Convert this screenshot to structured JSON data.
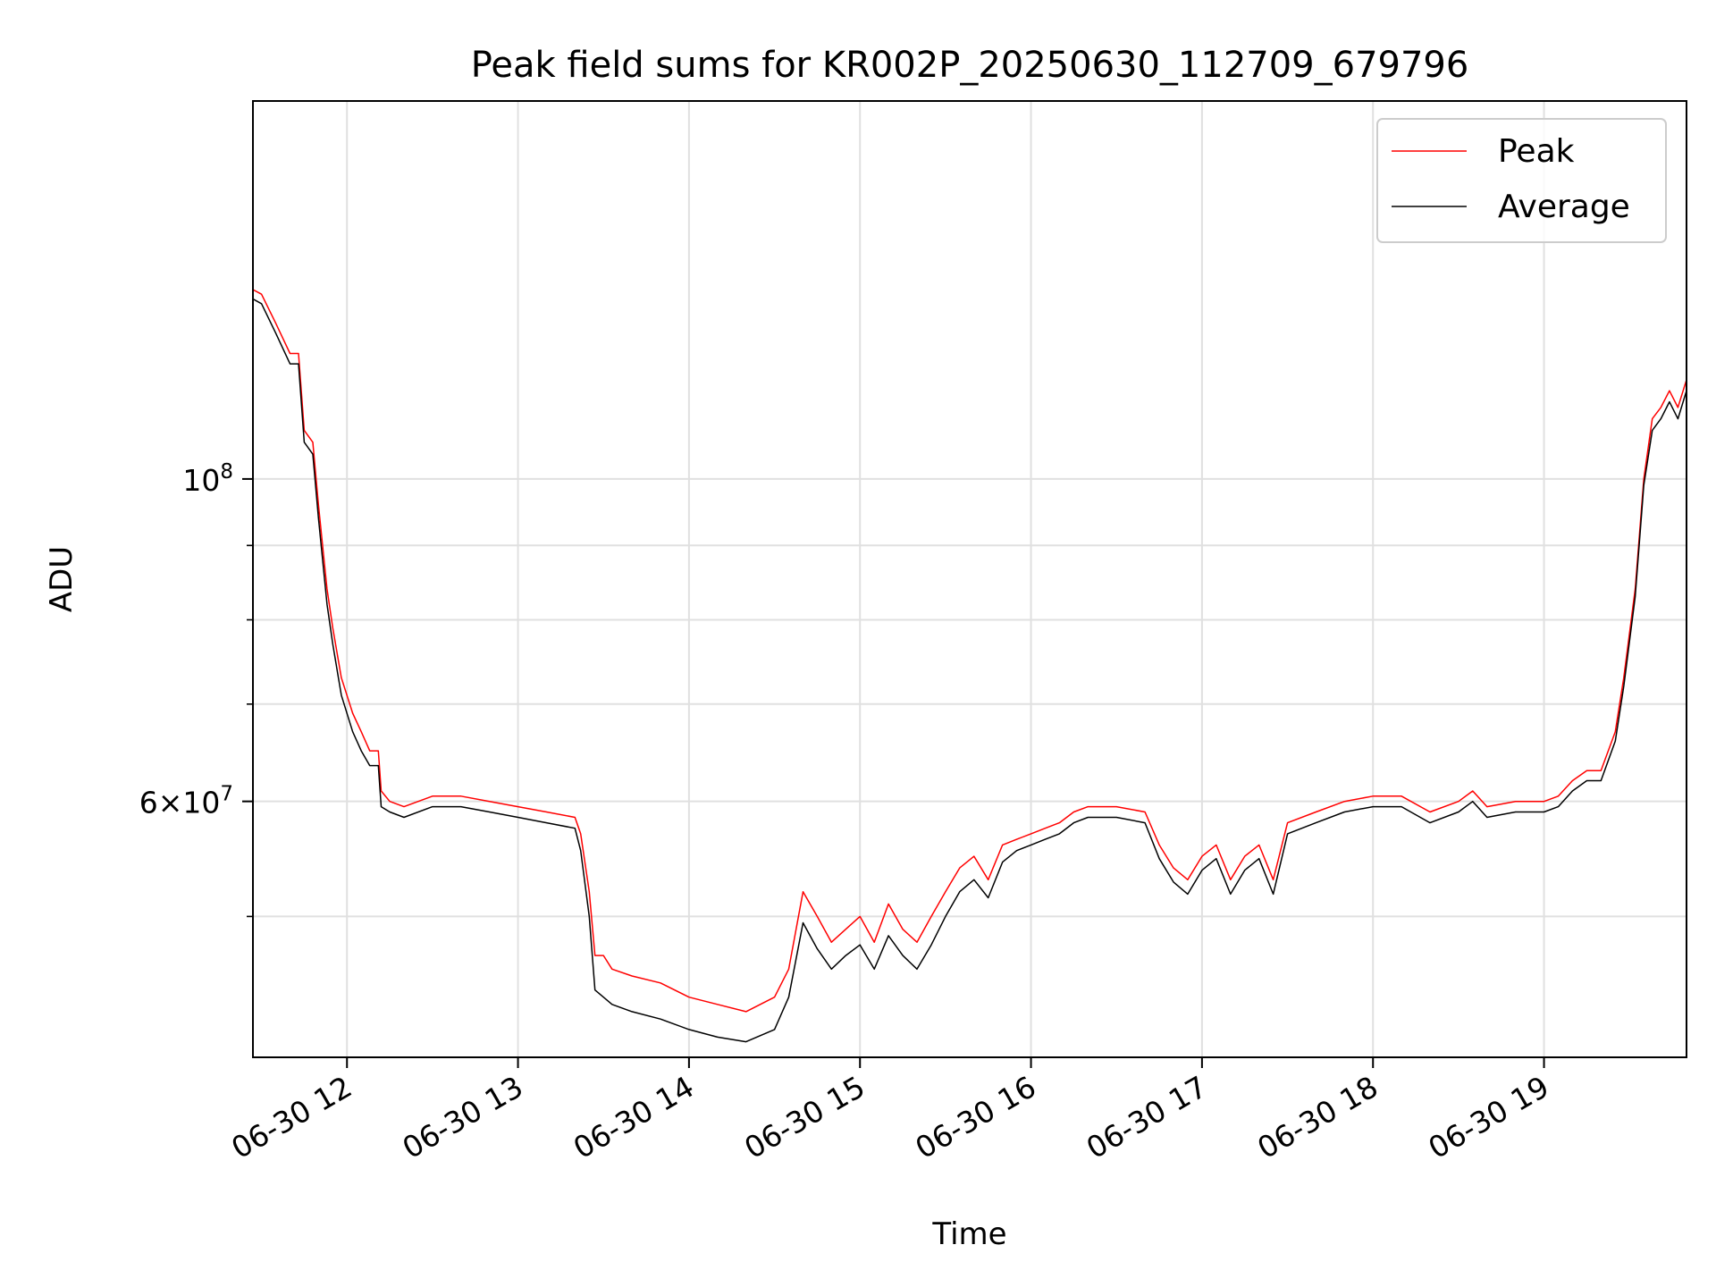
{
  "chart_data": {
    "type": "line",
    "title": "Peak field sums for KR002P_20250630_112709_679796",
    "xlabel": "Time",
    "ylabel": "ADU",
    "y_scale": "log",
    "ylim": [
      40000000,
      182000000
    ],
    "x_range": [
      "06-30 11:27",
      "06-30 19:50"
    ],
    "x_ticks": [
      "06-30 12",
      "06-30 13",
      "06-30 14",
      "06-30 15",
      "06-30 16",
      "06-30 17",
      "06-30 18",
      "06-30 19"
    ],
    "y_major_ticks": [
      {
        "value": 100000000,
        "label_base": "10",
        "label_exp": "8"
      },
      {
        "value": 60000000,
        "label_base": "6×10",
        "label_exp": "7"
      }
    ],
    "y_minor_ticks": [
      50000000,
      70000000,
      80000000,
      90000000
    ],
    "grid": true,
    "legend_position": "top-right",
    "series": [
      {
        "name": "Peak",
        "color": "#ff0000",
        "x": [
          "06-30 11:27",
          "06-30 11:30",
          "06-30 11:35",
          "06-30 11:40",
          "06-30 11:43",
          "06-30 11:45",
          "06-30 11:48",
          "06-30 11:50",
          "06-30 11:53",
          "06-30 11:55",
          "06-30 11:58",
          "06-30 12:02",
          "06-30 12:05",
          "06-30 12:08",
          "06-30 12:10",
          "06-30 12:11",
          "06-30 12:12",
          "06-30 12:15",
          "06-30 12:20",
          "06-30 12:30",
          "06-30 12:40",
          "06-30 12:50",
          "06-30 13:00",
          "06-30 13:10",
          "06-30 13:20",
          "06-30 13:22",
          "06-30 13:25",
          "06-30 13:27",
          "06-30 13:30",
          "06-30 13:33",
          "06-30 13:40",
          "06-30 13:50",
          "06-30 14:00",
          "06-30 14:10",
          "06-30 14:20",
          "06-30 14:30",
          "06-30 14:35",
          "06-30 14:40",
          "06-30 14:45",
          "06-30 14:50",
          "06-30 14:55",
          "06-30 15:00",
          "06-30 15:05",
          "06-30 15:10",
          "06-30 15:15",
          "06-30 15:20",
          "06-30 15:25",
          "06-30 15:30",
          "06-30 15:35",
          "06-30 15:40",
          "06-30 15:45",
          "06-30 15:50",
          "06-30 15:55",
          "06-30 16:00",
          "06-30 16:05",
          "06-30 16:10",
          "06-30 16:15",
          "06-30 16:20",
          "06-30 16:30",
          "06-30 16:40",
          "06-30 16:45",
          "06-30 16:50",
          "06-30 16:55",
          "06-30 17:00",
          "06-30 17:05",
          "06-30 17:10",
          "06-30 17:15",
          "06-30 17:20",
          "06-30 17:25",
          "06-30 17:30",
          "06-30 17:40",
          "06-30 17:50",
          "06-30 18:00",
          "06-30 18:10",
          "06-30 18:20",
          "06-30 18:30",
          "06-30 18:35",
          "06-30 18:40",
          "06-30 18:50",
          "06-30 19:00",
          "06-30 19:05",
          "06-30 19:10",
          "06-30 19:15",
          "06-30 19:20",
          "06-30 19:25",
          "06-30 19:28",
          "06-30 19:32",
          "06-30 19:35",
          "06-30 19:38",
          "06-30 19:41",
          "06-30 19:44",
          "06-30 19:47",
          "06-30 19:50"
        ],
        "y": [
          135000000,
          134000000,
          128000000,
          122000000,
          122000000,
          108000000,
          106000000,
          96000000,
          84000000,
          79000000,
          73000000,
          69000000,
          67000000,
          65000000,
          65000000,
          65000000,
          61000000,
          60000000,
          59500000,
          60500000,
          60500000,
          60000000,
          59500000,
          59000000,
          58500000,
          57000000,
          52000000,
          47000000,
          47000000,
          46000000,
          45500000,
          45000000,
          44000000,
          43500000,
          43000000,
          44000000,
          46000000,
          52000000,
          50000000,
          48000000,
          49000000,
          50000000,
          48000000,
          51000000,
          49000000,
          48000000,
          50000000,
          52000000,
          54000000,
          55000000,
          53000000,
          56000000,
          56500000,
          57000000,
          57500000,
          58000000,
          59000000,
          59500000,
          59500000,
          59000000,
          56000000,
          54000000,
          53000000,
          55000000,
          56000000,
          53000000,
          55000000,
          56000000,
          53000000,
          58000000,
          59000000,
          60000000,
          60500000,
          60500000,
          59000000,
          60000000,
          61000000,
          59500000,
          60000000,
          60000000,
          60500000,
          62000000,
          63000000,
          63000000,
          67000000,
          73000000,
          84000000,
          100000000,
          110000000,
          112000000,
          115000000,
          112000000,
          117000000
        ]
      },
      {
        "name": "Average",
        "color": "#000000",
        "x": [
          "06-30 11:27",
          "06-30 11:30",
          "06-30 11:35",
          "06-30 11:40",
          "06-30 11:43",
          "06-30 11:45",
          "06-30 11:48",
          "06-30 11:50",
          "06-30 11:53",
          "06-30 11:55",
          "06-30 11:58",
          "06-30 12:02",
          "06-30 12:05",
          "06-30 12:08",
          "06-30 12:10",
          "06-30 12:11",
          "06-30 12:12",
          "06-30 12:15",
          "06-30 12:20",
          "06-30 12:30",
          "06-30 12:40",
          "06-30 12:50",
          "06-30 13:00",
          "06-30 13:10",
          "06-30 13:20",
          "06-30 13:22",
          "06-30 13:25",
          "06-30 13:27",
          "06-30 13:30",
          "06-30 13:33",
          "06-30 13:40",
          "06-30 13:50",
          "06-30 14:00",
          "06-30 14:10",
          "06-30 14:20",
          "06-30 14:30",
          "06-30 14:35",
          "06-30 14:40",
          "06-30 14:45",
          "06-30 14:50",
          "06-30 14:55",
          "06-30 15:00",
          "06-30 15:05",
          "06-30 15:10",
          "06-30 15:15",
          "06-30 15:20",
          "06-30 15:25",
          "06-30 15:30",
          "06-30 15:35",
          "06-30 15:40",
          "06-30 15:45",
          "06-30 15:50",
          "06-30 15:55",
          "06-30 16:00",
          "06-30 16:05",
          "06-30 16:10",
          "06-30 16:15",
          "06-30 16:20",
          "06-30 16:30",
          "06-30 16:40",
          "06-30 16:45",
          "06-30 16:50",
          "06-30 16:55",
          "06-30 17:00",
          "06-30 17:05",
          "06-30 17:10",
          "06-30 17:15",
          "06-30 17:20",
          "06-30 17:25",
          "06-30 17:30",
          "06-30 17:40",
          "06-30 17:50",
          "06-30 18:00",
          "06-30 18:10",
          "06-30 18:20",
          "06-30 18:30",
          "06-30 18:35",
          "06-30 18:40",
          "06-30 18:50",
          "06-30 19:00",
          "06-30 19:05",
          "06-30 19:10",
          "06-30 19:15",
          "06-30 19:20",
          "06-30 19:25",
          "06-30 19:28",
          "06-30 19:32",
          "06-30 19:35",
          "06-30 19:38",
          "06-30 19:41",
          "06-30 19:44",
          "06-30 19:47",
          "06-30 19:50"
        ],
        "y": [
          133000000,
          132000000,
          126000000,
          120000000,
          120000000,
          106000000,
          104000000,
          94000000,
          82000000,
          77000000,
          71000000,
          67000000,
          65000000,
          63500000,
          63500000,
          63500000,
          59500000,
          59000000,
          58500000,
          59500000,
          59500000,
          59000000,
          58500000,
          58000000,
          57500000,
          55500000,
          50000000,
          44500000,
          44000000,
          43500000,
          43000000,
          42500000,
          41800000,
          41300000,
          41000000,
          41800000,
          44000000,
          49500000,
          47500000,
          46000000,
          47000000,
          47800000,
          46000000,
          48500000,
          47000000,
          46000000,
          47800000,
          50000000,
          52000000,
          53000000,
          51500000,
          54500000,
          55500000,
          56000000,
          56500000,
          57000000,
          58000000,
          58500000,
          58500000,
          58000000,
          54800000,
          52800000,
          51800000,
          53800000,
          54800000,
          51800000,
          53800000,
          54800000,
          51800000,
          57000000,
          58000000,
          59000000,
          59500000,
          59500000,
          58000000,
          59000000,
          60000000,
          58500000,
          59000000,
          59000000,
          59500000,
          61000000,
          62000000,
          62000000,
          66000000,
          72000000,
          83000000,
          99000000,
          108000000,
          110000000,
          113000000,
          110000000,
          115000000
        ]
      }
    ]
  }
}
